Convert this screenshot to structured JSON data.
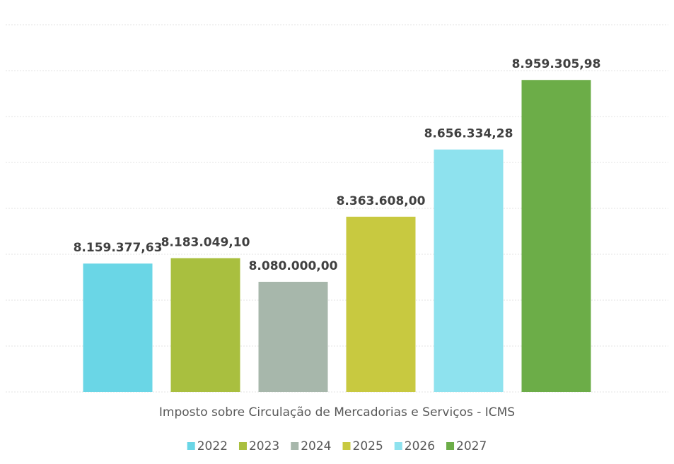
{
  "chart_data": {
    "type": "bar",
    "categories": [
      "Imposto sobre Circulação de Mercadorias e Serviços - ICMS"
    ],
    "series": [
      {
        "name": "2022",
        "color": "#6ad6e6",
        "values": [
          8159377.63
        ],
        "value_labels": [
          "8.159.377,63"
        ]
      },
      {
        "name": "2023",
        "color": "#a9bf3f",
        "values": [
          8183049.1
        ],
        "value_labels": [
          "8.183.049,10"
        ]
      },
      {
        "name": "2024",
        "color": "#a7b7ab",
        "values": [
          8080000.0
        ],
        "value_labels": [
          "8.080.000,00"
        ]
      },
      {
        "name": "2025",
        "color": "#c8c940",
        "values": [
          8363608.0
        ],
        "value_labels": [
          "8.363.608,00"
        ]
      },
      {
        "name": "2026",
        "color": "#8ee2ee",
        "values": [
          8656334.28
        ],
        "value_labels": [
          "8.656.334,28"
        ]
      },
      {
        "name": "2027",
        "color": "#6cad48",
        "values": [
          8959305.98
        ],
        "value_labels": [
          "8.959.305,98"
        ]
      }
    ],
    "ylim": [
      7600000,
      9200000
    ],
    "yticks": [
      7600000,
      7800000,
      8000000,
      8200000,
      8400000,
      8600000,
      8800000,
      9000000,
      9200000
    ],
    "grid": true
  }
}
